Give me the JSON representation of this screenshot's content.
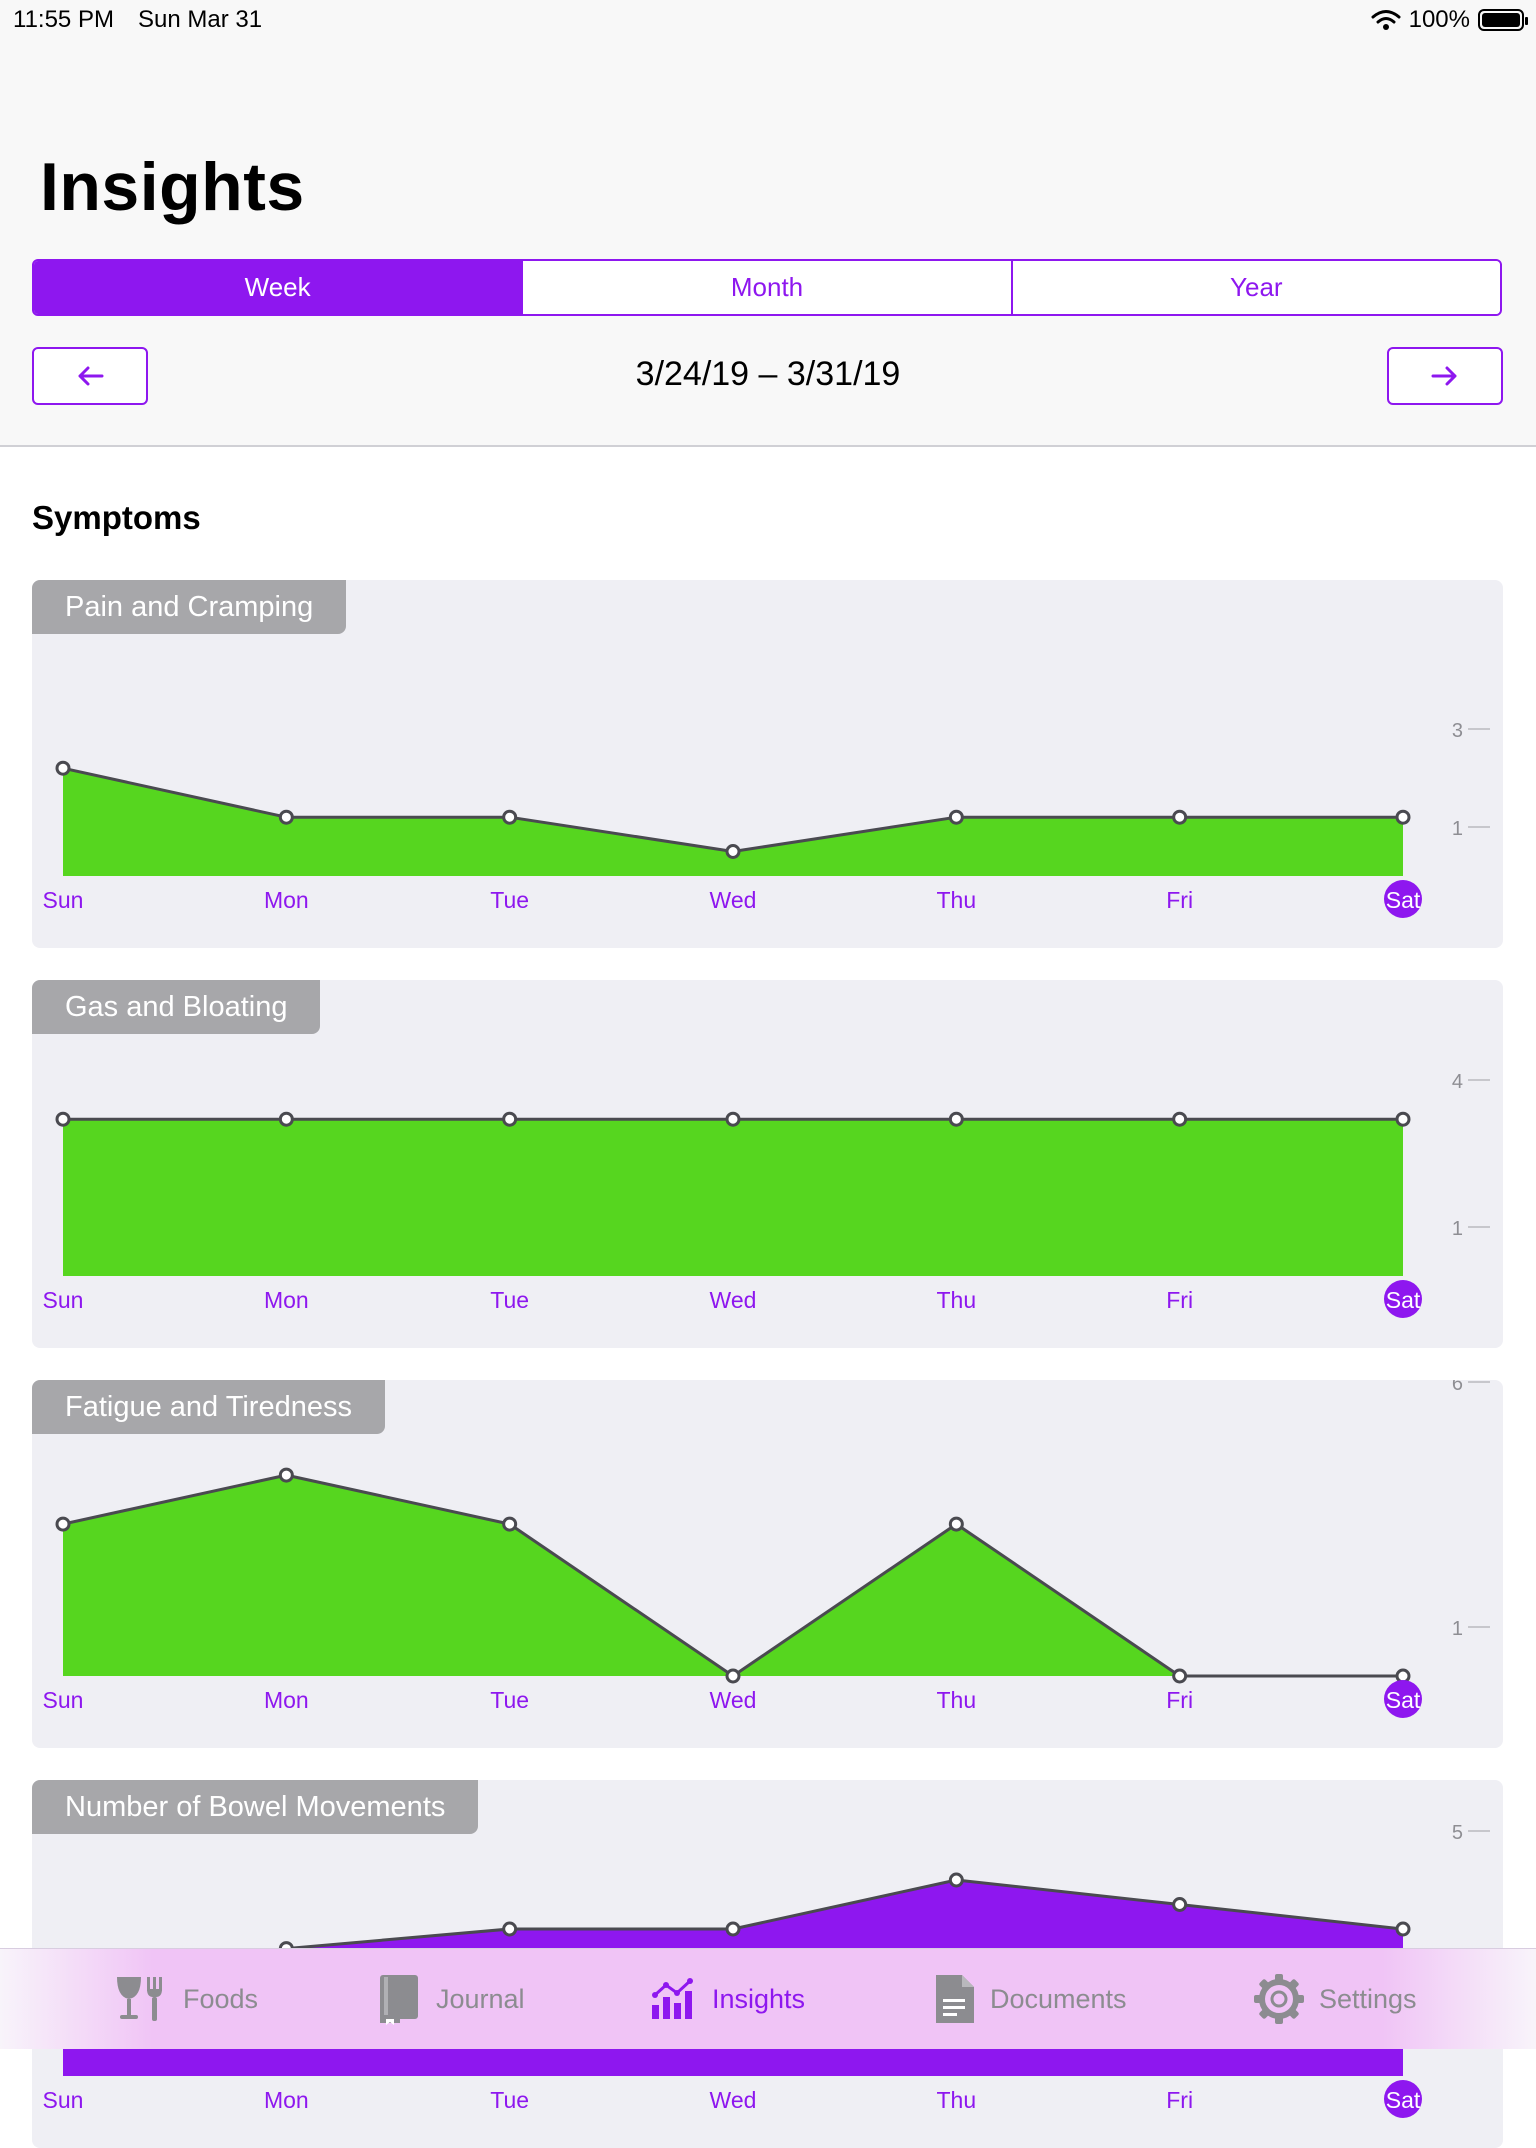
{
  "status_bar": {
    "time": "11:55 PM",
    "date": "Sun Mar 31",
    "battery": "100%"
  },
  "header": {
    "title": "Insights",
    "segments": [
      {
        "label": "Week",
        "active": true
      },
      {
        "label": "Month",
        "active": false
      },
      {
        "label": "Year",
        "active": false
      }
    ],
    "date_range": "3/24/19 – 3/31/19",
    "prev_icon": "arrow-left-icon",
    "next_icon": "arrow-right-icon"
  },
  "section_title": "Symptoms",
  "colors": {
    "accent": "#8e17ef",
    "fill_green": "#56d61f",
    "line": "#4a4a50",
    "card_bg": "#efeff4",
    "tab_gray": "#a7a7aa"
  },
  "chart_data": [
    {
      "type": "area",
      "title": "Pain and Cramping",
      "categories": [
        "Sun",
        "Mon",
        "Tue",
        "Wed",
        "Thu",
        "Fri",
        "Sat"
      ],
      "values": [
        2.2,
        1.2,
        1.2,
        0.5,
        1.2,
        1.2,
        1.2
      ],
      "yticks": [
        3,
        1
      ],
      "highlight": "Sat",
      "fill": "#56d61f"
    },
    {
      "type": "area",
      "title": "Gas and Bloating",
      "categories": [
        "Sun",
        "Mon",
        "Tue",
        "Wed",
        "Thu",
        "Fri",
        "Sat"
      ],
      "values": [
        3.2,
        3.2,
        3.2,
        3.2,
        3.2,
        3.2,
        3.2
      ],
      "yticks": [
        4,
        1
      ],
      "highlight": "Sat",
      "fill": "#56d61f"
    },
    {
      "type": "area",
      "title": "Fatigue and Tiredness",
      "categories": [
        "Sun",
        "Mon",
        "Tue",
        "Wed",
        "Thu",
        "Fri",
        "Sat"
      ],
      "values": [
        3.1,
        4.1,
        3.1,
        0.0,
        3.1,
        0.0,
        0.0
      ],
      "yticks": [
        6,
        1
      ],
      "highlight": "Sat",
      "fill": "#56d61f"
    },
    {
      "type": "area",
      "title": "Number of Bowel Movements",
      "categories": [
        "Sun",
        "Mon",
        "Tue",
        "Wed",
        "Thu",
        "Fri",
        "Sat"
      ],
      "values": [
        2.0,
        2.6,
        3.0,
        3.0,
        4.0,
        3.5,
        3.0
      ],
      "yticks": [
        5
      ],
      "highlight": "Sat",
      "fill": "#8e17ef"
    }
  ],
  "tab_bar": [
    {
      "label": "Foods",
      "icon": "foods-icon",
      "active": false
    },
    {
      "label": "Journal",
      "icon": "journal-icon",
      "active": false
    },
    {
      "label": "Insights",
      "icon": "insights-icon",
      "active": true
    },
    {
      "label": "Documents",
      "icon": "documents-icon",
      "active": false
    },
    {
      "label": "Settings",
      "icon": "settings-icon",
      "active": false
    }
  ]
}
